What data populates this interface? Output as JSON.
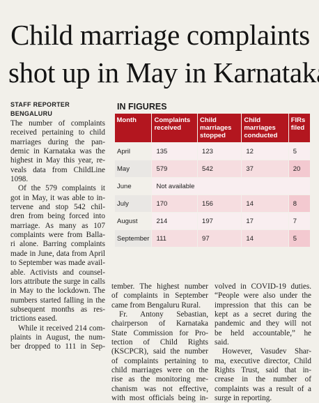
{
  "headline": {
    "lines": [
      "Child marriage complaints",
      "shot up in May in Karnataka"
    ]
  },
  "byline": {
    "reporter": "STAFF REPORTER",
    "place": "BENGALURU"
  },
  "figures": {
    "title": "IN FIGURES",
    "header": [
      "Month",
      "Complaints received",
      "Child marriages stopped",
      "Child marriages conducted",
      "FIRs filed"
    ],
    "rows": [
      [
        "April",
        "135",
        "123",
        "12",
        "5"
      ],
      [
        "May",
        "579",
        "542",
        "37",
        "20"
      ],
      [
        "June",
        "Not available"
      ],
      [
        "July",
        "170",
        "156",
        "14",
        "8"
      ],
      [
        "August",
        "214",
        "197",
        "17",
        "7"
      ],
      [
        "September",
        "111",
        "97",
        "14",
        "5"
      ]
    ]
  },
  "article": {
    "columns": [
      {
        "paragraphs": [
          {
            "lines": [
              "The number of complaints",
              "received pertaining to child",
              "marriages during the pan-",
              "demic in Karnataka was the",
              "highest in May this year, re-",
              "veals data from ChildLine",
              "1098."
            ]
          },
          {
            "lines": [
              "Of the 579 complaints it",
              "got in May, it was able to in-",
              "tervene and stop 542 chil-",
              "dren from being forced into",
              "marriage. As many as 107",
              "complaints were from Balla-",
              "ri alone. Barring complaints",
              "made in June, data from April",
              "to September was made avail-",
              "able. Activists and counsel-",
              "lors attribute the surge in calls",
              "in May to the lockdown. The",
              "numbers started falling in the",
              "subsequent months as res-",
              "trictions eased."
            ]
          },
          {
            "lines": [
              "While it received 214 com-",
              "plaints in August, the num-",
              "ber dropped to 111 in Sep-"
            ]
          }
        ]
      },
      {
        "paragraphs": [
          {
            "lines": [
              "tember. The highest number",
              "of complaints in September",
              "came from Bengaluru Rural."
            ]
          },
          {
            "lines": [
              "Fr. Antony Sebastian,",
              "chairperson of Karnataka",
              "State Commission for Pro-",
              "tection of Child Rights",
              "(KSCPCR), said the number",
              "of complaints pertaining to",
              "child marriages were on the",
              "rise as the monitoring me-",
              "chanism was not effective,",
              "with most officials being in-"
            ]
          }
        ]
      },
      {
        "paragraphs": [
          {
            "lines": [
              "volved in COVID-19 duties.",
              "“People were also under the",
              "impression that this can be",
              "kept as a secret during the",
              "pandemic and they will not",
              "be held accountable,” he",
              "said."
            ]
          },
          {
            "lines": [
              "However, Vasudev Shar-",
              "ma, executive director, Child",
              "Rights Trust, said that in-",
              "crease in the number of",
              "complaints was a result of a",
              "surge in reporting."
            ]
          }
        ]
      }
    ]
  }
}
